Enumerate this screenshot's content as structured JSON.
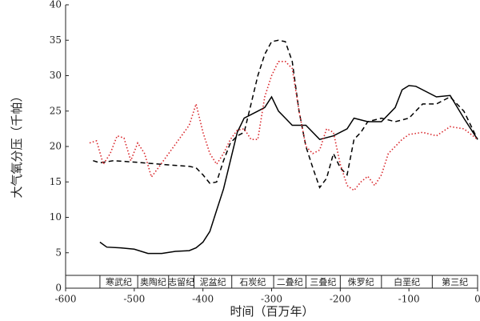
{
  "chart_data": {
    "type": "line",
    "y_label": "大气氧分压（千帕）",
    "x_label": "时间（百万年）",
    "xlim": [
      -600,
      0
    ],
    "ylim": [
      0,
      40
    ],
    "xticks": [
      -600,
      -500,
      -400,
      -300,
      -200,
      -100,
      0
    ],
    "yticks": [
      0,
      5,
      10,
      15,
      20,
      25,
      30,
      35,
      40
    ],
    "grid": false,
    "periods": [
      {
        "name": "寒武纪",
        "start": -550,
        "end": -495
      },
      {
        "name": "奥陶纪",
        "start": -495,
        "end": -450
      },
      {
        "name": "志留纪",
        "start": -450,
        "end": -413
      },
      {
        "name": "泥盆纪",
        "start": -413,
        "end": -358
      },
      {
        "name": "石炭纪",
        "start": -358,
        "end": -297
      },
      {
        "name": "二叠纪",
        "start": -297,
        "end": -250
      },
      {
        "name": "三叠纪",
        "start": -250,
        "end": -200
      },
      {
        "name": "侏罗纪",
        "start": -200,
        "end": -140
      },
      {
        "name": "白垩纪",
        "start": -140,
        "end": -66
      },
      {
        "name": "第三纪",
        "start": -66,
        "end": 0
      }
    ],
    "series": [
      {
        "color": "#000000",
        "dash": "solid",
        "x": [
          -550,
          -540,
          -520,
          -500,
          -480,
          -460,
          -440,
          -420,
          -410,
          -400,
          -390,
          -380,
          -370,
          -360,
          -350,
          -340,
          -320,
          -310,
          -300,
          -290,
          -280,
          -270,
          -250,
          -230,
          -210,
          -190,
          -180,
          -160,
          -140,
          -120,
          -110,
          -100,
          -90,
          -60,
          -40,
          -20,
          0
        ],
        "values": [
          6.5,
          5.8,
          5.7,
          5.5,
          4.9,
          4.9,
          5.2,
          5.3,
          5.7,
          6.5,
          8,
          11,
          14,
          18,
          22,
          24,
          25,
          25.5,
          27,
          25,
          24,
          23,
          23,
          21,
          21.5,
          22.5,
          24,
          23.5,
          23.5,
          25.5,
          28,
          28.6,
          28.5,
          27,
          27.2,
          24,
          21
        ]
      },
      {
        "color": "#000000",
        "dash": "dashed",
        "x": [
          -560,
          -550,
          -530,
          -500,
          -450,
          -420,
          -410,
          -400,
          -390,
          -380,
          -370,
          -360,
          -350,
          -340,
          -330,
          -320,
          -310,
          -300,
          -290,
          -280,
          -270,
          -260,
          -250,
          -240,
          -230,
          -220,
          -210,
          -200,
          -190,
          -180,
          -170,
          -160,
          -140,
          -120,
          -100,
          -80,
          -60,
          -40,
          -20,
          0
        ],
        "values": [
          18,
          17.7,
          18,
          17.8,
          17.4,
          17.2,
          17,
          16,
          14.8,
          15,
          18,
          20.5,
          21.5,
          22,
          26,
          30,
          33,
          34.8,
          35,
          34.8,
          32,
          25,
          20,
          17,
          14.2,
          15.5,
          19,
          17,
          16,
          21,
          22,
          23.5,
          24,
          23.5,
          24,
          26,
          26,
          27,
          25,
          21
        ]
      },
      {
        "color": "#d9262b",
        "dash": "dotted",
        "x": [
          -565,
          -555,
          -545,
          -535,
          -525,
          -515,
          -505,
          -495,
          -485,
          -475,
          -465,
          -450,
          -435,
          -420,
          -410,
          -400,
          -390,
          -380,
          -370,
          -360,
          -350,
          -340,
          -330,
          -320,
          -310,
          -300,
          -290,
          -280,
          -270,
          -260,
          -250,
          -240,
          -230,
          -220,
          -210,
          -200,
          -190,
          -180,
          -170,
          -160,
          -150,
          -140,
          -130,
          -110,
          -100,
          -80,
          -60,
          -40,
          -20,
          0
        ],
        "values": [
          20.5,
          20.8,
          17.5,
          19,
          21.5,
          21.2,
          18,
          20.5,
          19,
          15.7,
          17,
          19,
          21,
          23,
          26,
          22,
          19,
          17.5,
          19,
          21,
          22.3,
          22.5,
          21,
          21,
          27,
          30,
          32,
          32,
          31,
          25,
          20,
          19,
          19.5,
          22.5,
          22,
          17.5,
          14.5,
          13.8,
          15,
          15.8,
          14.5,
          16,
          19,
          21,
          21.7,
          22,
          21.5,
          22.8,
          22.5,
          21
        ]
      }
    ]
  }
}
